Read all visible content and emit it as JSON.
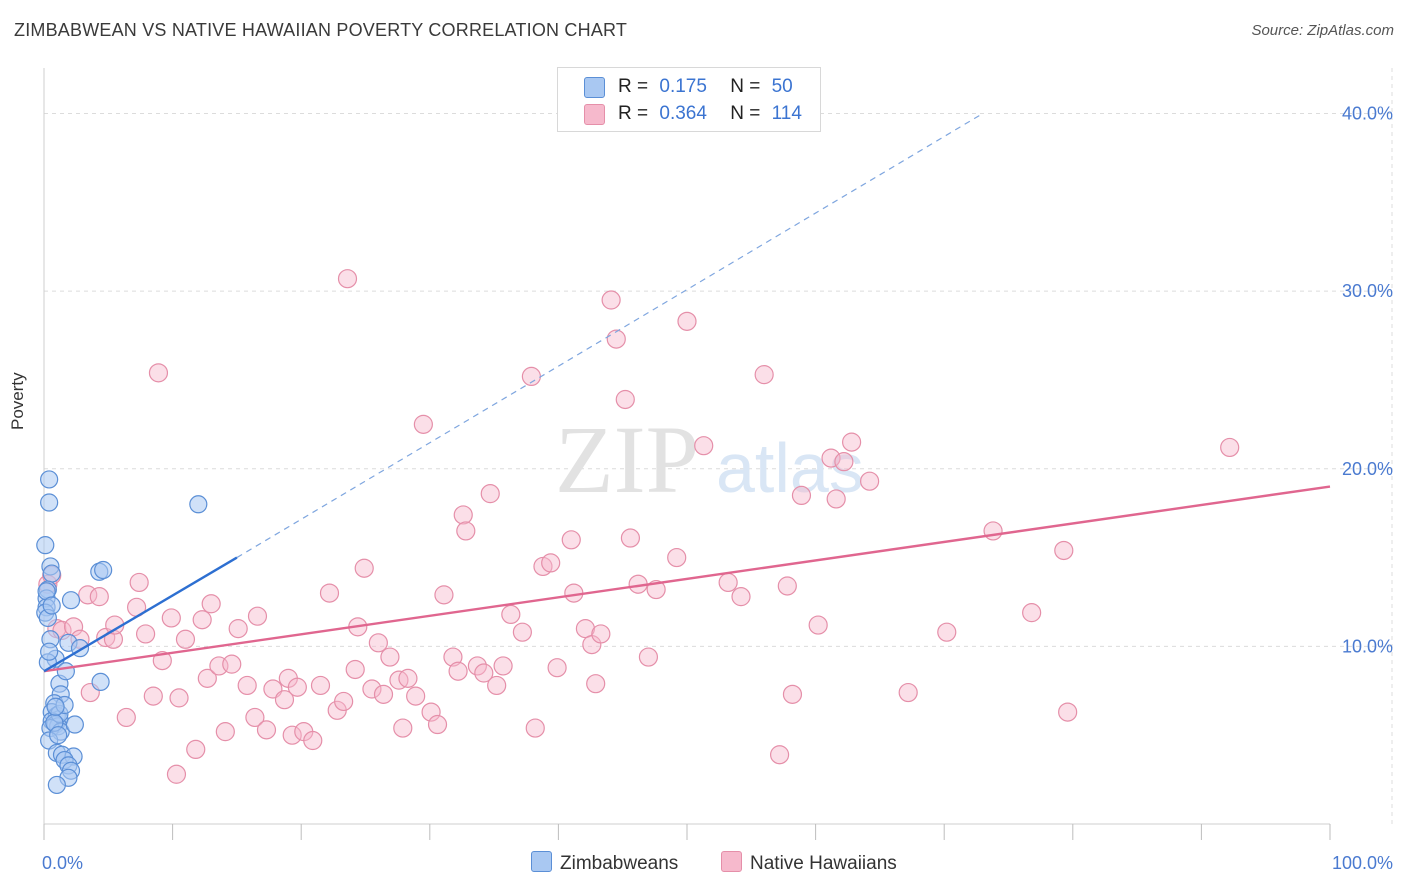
{
  "header": {
    "title": "ZIMBABWEAN VS NATIVE HAWAIIAN POVERTY CORRELATION CHART",
    "source": "Source: ZipAtlas.com"
  },
  "legend": {
    "rows": [
      {
        "r_label": "R =",
        "r_value": "0.175",
        "n_label": "N =",
        "n_value": "50",
        "color": "#a9c8f2"
      },
      {
        "r_label": "R =",
        "r_value": "0.364",
        "n_label": "N =",
        "n_value": "114",
        "color": "#f6b9cc"
      }
    ],
    "series": [
      "Zimbabweans",
      "Native Hawaiians"
    ]
  },
  "watermark": {
    "zip": "ZIP",
    "atlas": "atlas"
  },
  "colors": {
    "blue_fill": "#a9c8f2",
    "blue_stroke": "#5b8fd6",
    "blue_line": "#2d6fd1",
    "pink_fill": "#f6b9cc",
    "pink_stroke": "#e58fa9",
    "pink_line": "#e0668f",
    "grid": "#dcdcdc",
    "tick_label": "#4a7ad0"
  },
  "chart_data": {
    "type": "scatter",
    "title": "ZIMBABWEAN VS NATIVE HAWAIIAN POVERTY CORRELATION CHART",
    "xlabel": "",
    "ylabel": "Poverty",
    "xlim": [
      0,
      100
    ],
    "ylim": [
      0,
      42
    ],
    "x_tick_labels": [
      "0.0%",
      "100.0%"
    ],
    "y_ticks": [
      10,
      20,
      30,
      40
    ],
    "y_tick_labels": [
      "10.0%",
      "20.0%",
      "30.0%",
      "40.0%"
    ],
    "series": [
      {
        "name": "Zimbabweans",
        "r": 0.175,
        "n": 50,
        "trend": {
          "x0": 0,
          "y0": 8.6,
          "x1": 15,
          "y1": 15.0,
          "dashed_to": {
            "x": 73,
            "y": 40.0
          }
        },
        "points": [
          [
            0.1,
            15.7
          ],
          [
            0.4,
            19.4
          ],
          [
            0.4,
            18.1
          ],
          [
            0.5,
            14.5
          ],
          [
            0.6,
            14.1
          ],
          [
            0.3,
            13.2
          ],
          [
            0.2,
            12.7
          ],
          [
            0.2,
            12.2
          ],
          [
            0.1,
            11.9
          ],
          [
            0.3,
            11.6
          ],
          [
            0.5,
            10.4
          ],
          [
            0.9,
            9.3
          ],
          [
            0.3,
            9.1
          ],
          [
            1.2,
            7.9
          ],
          [
            1.3,
            7.3
          ],
          [
            0.8,
            6.8
          ],
          [
            0.6,
            6.3
          ],
          [
            1.0,
            6.1
          ],
          [
            1.2,
            5.9
          ],
          [
            0.6,
            5.8
          ],
          [
            0.9,
            5.6
          ],
          [
            1.1,
            5.5
          ],
          [
            0.5,
            5.4
          ],
          [
            1.3,
            5.2
          ],
          [
            0.4,
            4.7
          ],
          [
            1.0,
            4.0
          ],
          [
            1.4,
            3.9
          ],
          [
            2.3,
            3.8
          ],
          [
            1.6,
            3.6
          ],
          [
            1.9,
            3.3
          ],
          [
            2.1,
            3.0
          ],
          [
            1.9,
            2.6
          ],
          [
            1.0,
            2.2
          ],
          [
            1.9,
            10.2
          ],
          [
            2.1,
            12.6
          ],
          [
            4.4,
            8.0
          ],
          [
            4.3,
            14.2
          ],
          [
            4.6,
            14.3
          ],
          [
            12.0,
            18.0
          ],
          [
            0.2,
            13.1
          ],
          [
            0.6,
            12.3
          ],
          [
            1.2,
            6.2
          ],
          [
            1.6,
            6.7
          ],
          [
            2.4,
            5.6
          ],
          [
            0.8,
            5.7
          ],
          [
            1.7,
            8.6
          ],
          [
            0.4,
            9.7
          ],
          [
            1.1,
            5.0
          ],
          [
            0.9,
            6.6
          ],
          [
            2.8,
            9.9
          ]
        ]
      },
      {
        "name": "Native Hawaiians",
        "r": 0.364,
        "n": 114,
        "trend": {
          "x0": 0,
          "y0": 8.6,
          "x1": 100,
          "y1": 19.0
        },
        "points": [
          [
            0.3,
            13.5
          ],
          [
            0.6,
            14.0
          ],
          [
            1.0,
            11.0
          ],
          [
            1.4,
            10.9
          ],
          [
            2.3,
            11.1
          ],
          [
            2.8,
            10.4
          ],
          [
            3.4,
            12.9
          ],
          [
            3.6,
            7.4
          ],
          [
            4.3,
            12.8
          ],
          [
            4.8,
            10.5
          ],
          [
            5.4,
            10.4
          ],
          [
            5.5,
            11.2
          ],
          [
            6.4,
            6.0
          ],
          [
            7.2,
            12.2
          ],
          [
            7.4,
            13.6
          ],
          [
            7.9,
            10.7
          ],
          [
            8.5,
            7.2
          ],
          [
            8.9,
            25.4
          ],
          [
            9.2,
            9.2
          ],
          [
            9.9,
            11.6
          ],
          [
            10.3,
            2.8
          ],
          [
            10.5,
            7.1
          ],
          [
            11.0,
            10.4
          ],
          [
            11.8,
            4.2
          ],
          [
            12.3,
            11.5
          ],
          [
            12.7,
            8.2
          ],
          [
            13.0,
            12.4
          ],
          [
            13.6,
            8.9
          ],
          [
            14.1,
            5.2
          ],
          [
            14.6,
            9.0
          ],
          [
            15.1,
            11.0
          ],
          [
            15.8,
            7.8
          ],
          [
            16.4,
            6.0
          ],
          [
            16.6,
            11.7
          ],
          [
            17.3,
            5.3
          ],
          [
            17.8,
            7.6
          ],
          [
            18.7,
            7.0
          ],
          [
            19.0,
            8.2
          ],
          [
            19.3,
            5.0
          ],
          [
            19.7,
            7.7
          ],
          [
            20.2,
            5.2
          ],
          [
            20.9,
            4.7
          ],
          [
            21.5,
            7.8
          ],
          [
            22.2,
            13.0
          ],
          [
            22.8,
            6.4
          ],
          [
            23.3,
            6.9
          ],
          [
            23.6,
            30.7
          ],
          [
            24.2,
            8.7
          ],
          [
            24.4,
            11.1
          ],
          [
            24.9,
            14.4
          ],
          [
            25.5,
            7.6
          ],
          [
            26.0,
            10.2
          ],
          [
            26.4,
            7.3
          ],
          [
            26.9,
            9.4
          ],
          [
            27.6,
            8.1
          ],
          [
            27.9,
            5.4
          ],
          [
            28.3,
            8.2
          ],
          [
            28.9,
            7.2
          ],
          [
            29.5,
            22.5
          ],
          [
            30.1,
            6.3
          ],
          [
            30.6,
            5.6
          ],
          [
            31.1,
            12.9
          ],
          [
            31.8,
            9.4
          ],
          [
            32.2,
            8.6
          ],
          [
            32.6,
            17.4
          ],
          [
            32.8,
            16.5
          ],
          [
            33.7,
            8.9
          ],
          [
            34.2,
            8.5
          ],
          [
            34.7,
            18.6
          ],
          [
            35.2,
            7.8
          ],
          [
            35.7,
            8.9
          ],
          [
            36.3,
            11.8
          ],
          [
            37.2,
            10.8
          ],
          [
            37.9,
            25.2
          ],
          [
            38.2,
            5.4
          ],
          [
            38.8,
            14.5
          ],
          [
            39.4,
            14.7
          ],
          [
            39.9,
            8.8
          ],
          [
            41.0,
            16.0
          ],
          [
            41.2,
            13.0
          ],
          [
            42.1,
            11.0
          ],
          [
            42.6,
            10.1
          ],
          [
            42.9,
            7.9
          ],
          [
            43.3,
            10.7
          ],
          [
            44.1,
            29.5
          ],
          [
            44.5,
            27.3
          ],
          [
            45.2,
            23.9
          ],
          [
            45.6,
            16.1
          ],
          [
            46.2,
            13.5
          ],
          [
            47.0,
            9.4
          ],
          [
            47.6,
            13.2
          ],
          [
            49.2,
            15.0
          ],
          [
            50.0,
            28.3
          ],
          [
            51.3,
            21.3
          ],
          [
            53.2,
            13.6
          ],
          [
            54.2,
            12.8
          ],
          [
            56.0,
            25.3
          ],
          [
            57.2,
            3.9
          ],
          [
            57.8,
            13.4
          ],
          [
            58.2,
            7.3
          ],
          [
            58.9,
            18.5
          ],
          [
            60.2,
            11.2
          ],
          [
            61.2,
            20.6
          ],
          [
            61.6,
            18.3
          ],
          [
            62.2,
            20.4
          ],
          [
            62.8,
            21.5
          ],
          [
            64.2,
            19.3
          ],
          [
            67.2,
            7.4
          ],
          [
            70.2,
            10.8
          ],
          [
            73.8,
            16.5
          ],
          [
            76.8,
            11.9
          ],
          [
            79.3,
            15.4
          ],
          [
            79.6,
            6.3
          ],
          [
            92.2,
            21.2
          ]
        ]
      }
    ]
  }
}
